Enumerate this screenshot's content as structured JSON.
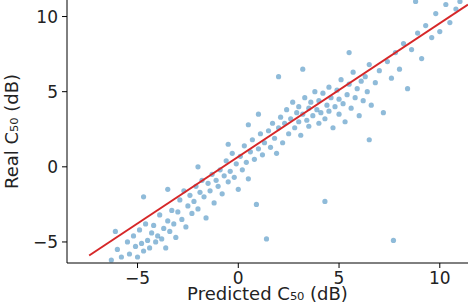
{
  "chart_data": {
    "type": "scatter",
    "x_label": "Predicted C₅₀ (dB)",
    "y_label": "Real C₅₀ (dB)",
    "xlim": [
      -8.5,
      11.4
    ],
    "ylim": [
      -6.4,
      11.1
    ],
    "xticks": [
      {
        "value": -5,
        "label": "−5"
      },
      0,
      5,
      10
    ],
    "yticks": [
      {
        "value": -5,
        "label": "−5"
      },
      0,
      5,
      10
    ],
    "grid": false,
    "series": [
      {
        "type": "scatter",
        "color": "#1f77b4",
        "marker": "circle",
        "x": [
          -6.3,
          -6.0,
          -5.8,
          -5.5,
          -5.4,
          -5.2,
          -5.1,
          -5.0,
          -4.9,
          -4.8,
          -4.7,
          -4.6,
          -4.5,
          -4.4,
          -4.3,
          -4.2,
          -4.1,
          -4.0,
          -3.9,
          -3.8,
          -3.7,
          -3.6,
          -3.5,
          -3.4,
          -3.3,
          -3.2,
          -3.1,
          -3.0,
          -2.9,
          -2.8,
          -2.7,
          -2.6,
          -2.5,
          -2.4,
          -2.3,
          -2.2,
          -2.1,
          -2.0,
          -1.9,
          -1.8,
          -1.7,
          -1.6,
          -1.5,
          -1.4,
          -1.3,
          -1.2,
          -1.1,
          -1.0,
          -0.9,
          -0.8,
          -0.7,
          -0.6,
          -0.5,
          -0.4,
          -0.3,
          -0.2,
          -0.1,
          0.0,
          0.1,
          0.2,
          0.3,
          0.4,
          0.5,
          0.6,
          0.7,
          0.8,
          0.9,
          1.0,
          1.1,
          1.2,
          1.3,
          1.4,
          1.5,
          1.6,
          1.7,
          1.8,
          1.9,
          2.0,
          2.1,
          2.2,
          2.3,
          2.4,
          2.5,
          2.6,
          2.7,
          2.8,
          2.9,
          3.0,
          3.0,
          3.1,
          3.2,
          3.3,
          3.4,
          3.5,
          3.5,
          3.6,
          3.7,
          3.8,
          3.9,
          4.0,
          4.0,
          4.1,
          4.2,
          4.3,
          4.4,
          4.5,
          4.5,
          4.6,
          4.7,
          4.8,
          4.9,
          5.0,
          5.0,
          5.1,
          5.2,
          5.3,
          5.4,
          5.5,
          5.6,
          5.7,
          5.8,
          5.9,
          6.0,
          6.1,
          6.2,
          6.3,
          6.4,
          6.5,
          6.6,
          6.8,
          7.0,
          7.2,
          7.4,
          7.6,
          7.8,
          8.0,
          8.2,
          8.4,
          8.6,
          8.9,
          9.1,
          9.3,
          9.6,
          9.8,
          10.0,
          10.3,
          10.5,
          10.8,
          11.0,
          7.7,
          3.2,
          2.0,
          1.0,
          0.5,
          -0.5,
          -2.0,
          -3.5,
          4.3,
          6.5,
          -4.7,
          -6.1,
          5.5,
          8.8
        ],
        "values": [
          -6.2,
          -5.5,
          -6.0,
          -5.0,
          -5.8,
          -4.6,
          -5.3,
          -6.0,
          -4.2,
          -5.1,
          -5.6,
          -3.8,
          -4.9,
          -5.4,
          -4.4,
          -3.9,
          -5.0,
          -4.6,
          -3.2,
          -4.8,
          -4.1,
          -5.4,
          -3.6,
          -4.3,
          -2.9,
          -3.8,
          -4.7,
          -3.0,
          -2.2,
          -3.5,
          -1.6,
          -4.0,
          -2.6,
          -1.9,
          -3.1,
          -2.3,
          -1.3,
          -2.8,
          -1.7,
          -0.9,
          -2.0,
          -3.4,
          -1.1,
          -1.6,
          -0.5,
          -2.4,
          -0.9,
          -1.3,
          -0.2,
          -1.8,
          -0.6,
          0.4,
          -1.0,
          -0.3,
          0.9,
          -0.7,
          0.2,
          -1.5,
          0.7,
          -0.2,
          1.4,
          0.3,
          -0.8,
          1.0,
          1.8,
          0.5,
          -2.5,
          1.2,
          2.2,
          0.8,
          1.6,
          -4.8,
          2.4,
          1.3,
          2.9,
          1.9,
          0.9,
          2.6,
          3.3,
          1.6,
          2.9,
          3.8,
          2.2,
          3.2,
          4.3,
          2.6,
          3.6,
          3.0,
          4.0,
          2.1,
          3.5,
          4.6,
          3.1,
          3.9,
          2.7,
          4.3,
          3.4,
          5.0,
          3.8,
          2.9,
          4.4,
          3.6,
          4.9,
          3.2,
          4.1,
          5.3,
          3.7,
          4.6,
          2.6,
          4.0,
          5.1,
          3.5,
          4.5,
          5.8,
          4.2,
          3.0,
          4.8,
          5.5,
          3.9,
          6.3,
          4.6,
          5.2,
          3.4,
          5.7,
          4.4,
          6.0,
          5.0,
          6.8,
          4.1,
          5.6,
          6.4,
          3.6,
          7.0,
          5.9,
          7.6,
          6.5,
          8.2,
          5.2,
          7.8,
          8.9,
          7.2,
          9.4,
          8.6,
          10.2,
          9.0,
          10.8,
          9.6,
          10.5,
          11.0,
          -4.9,
          6.5,
          6.0,
          3.5,
          2.8,
          1.5,
          0.0,
          -1.5,
          -2.3,
          1.8,
          -2.0,
          -4.3,
          7.6,
          11.0
        ]
      },
      {
        "type": "line",
        "color": "#d62728",
        "line_style": "solid",
        "x": [
          -7.4,
          11.4
        ],
        "values": [
          -5.9,
          10.8
        ]
      }
    ]
  }
}
